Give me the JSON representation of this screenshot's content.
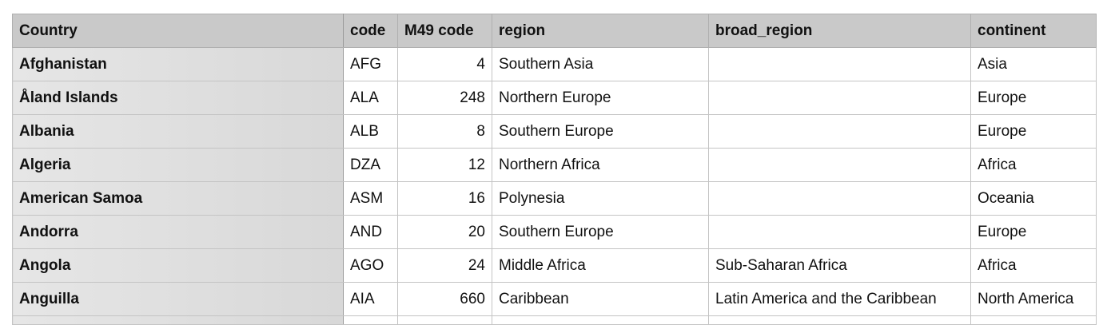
{
  "table": {
    "columns": [
      "Country",
      "code",
      "M49 code",
      "region",
      "broad_region",
      "continent"
    ],
    "rows": [
      [
        "Afghanistan",
        "AFG",
        4,
        "Southern Asia",
        null,
        "Asia"
      ],
      [
        "Åland Islands",
        "ALA",
        248,
        "Northern Europe",
        null,
        "Europe"
      ],
      [
        "Albania",
        "ALB",
        8,
        "Southern Europe",
        null,
        "Europe"
      ],
      [
        "Algeria",
        "DZA",
        12,
        "Northern Africa",
        null,
        "Africa"
      ],
      [
        "American Samoa",
        "ASM",
        16,
        "Polynesia",
        null,
        "Oceania"
      ],
      [
        "Andorra",
        "AND",
        20,
        "Southern Europe",
        null,
        "Europe"
      ],
      [
        "Angola",
        "AGO",
        24,
        "Middle Africa",
        "Sub-Saharan Africa",
        "Africa"
      ],
      [
        "Anguilla",
        "AIA",
        660,
        "Caribbean",
        "Latin America and the Caribbean",
        "North America"
      ]
    ]
  }
}
